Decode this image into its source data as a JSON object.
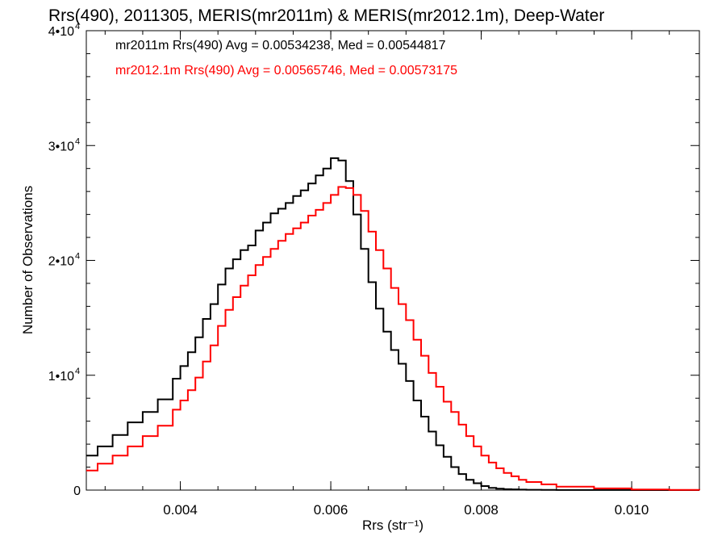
{
  "chart_data": {
    "type": "line",
    "title": "Rrs(490), 2011305, MERIS(mr2011m) & MERIS(mr2012.1m), Deep-Water",
    "xlabel": "Rrs (str⁻¹)",
    "ylabel": "Number of Observations",
    "xlim": [
      0.00275,
      0.0109
    ],
    "ylim": [
      0,
      40000
    ],
    "x_ticks": [
      {
        "value": 0.004,
        "label": "0.004"
      },
      {
        "value": 0.006,
        "label": "0.006"
      },
      {
        "value": 0.008,
        "label": "0.008"
      },
      {
        "value": 0.01,
        "label": "0.010"
      }
    ],
    "y_ticks": [
      {
        "value": 0,
        "label": "0",
        "exp": ""
      },
      {
        "value": 10000,
        "label": "1•10",
        "exp": "4"
      },
      {
        "value": 20000,
        "label": "2•10",
        "exp": "4"
      },
      {
        "value": 30000,
        "label": "3•10",
        "exp": "4"
      },
      {
        "value": 40000,
        "label": "4•10",
        "exp": "4"
      }
    ],
    "legend_position": "top-left",
    "grid": false,
    "series": [
      {
        "name": "mr2011m Rrs(490) Avg = 0.00534238, Med = 0.00544817",
        "color": "#000000",
        "x": [
          0.00275,
          0.0029,
          0.0031,
          0.0033,
          0.0035,
          0.0037,
          0.0039,
          0.004,
          0.0041,
          0.0042,
          0.0043,
          0.0044,
          0.0045,
          0.0046,
          0.0047,
          0.0048,
          0.0049,
          0.005,
          0.0051,
          0.0052,
          0.0053,
          0.0054,
          0.0055,
          0.0056,
          0.0057,
          0.0058,
          0.0059,
          0.006,
          0.0061,
          0.0062,
          0.0063,
          0.0064,
          0.0065,
          0.0066,
          0.0067,
          0.0068,
          0.0069,
          0.007,
          0.0071,
          0.0072,
          0.0073,
          0.0074,
          0.0075,
          0.0076,
          0.0077,
          0.0078,
          0.0079,
          0.008,
          0.0081,
          0.0082,
          0.0083,
          0.0084,
          0.0085,
          0.0086,
          0.0088,
          0.009,
          0.0095,
          0.01,
          0.0105,
          0.0109
        ],
        "y": [
          3000,
          3800,
          4800,
          5900,
          6800,
          7900,
          9700,
          10800,
          12000,
          13300,
          14900,
          16200,
          17900,
          19300,
          20100,
          20900,
          21300,
          22600,
          23300,
          24100,
          24500,
          25000,
          25600,
          26100,
          26700,
          27400,
          28000,
          28900,
          28700,
          26900,
          24000,
          21000,
          18100,
          15800,
          13800,
          12200,
          11000,
          9500,
          7800,
          6400,
          5100,
          3900,
          2900,
          2000,
          1400,
          900,
          600,
          350,
          200,
          120,
          80,
          60,
          40,
          30,
          20,
          10,
          5,
          0,
          0,
          0
        ]
      },
      {
        "name": "mr2012.1m Rrs(490) Avg = 0.00565746, Med = 0.00573175",
        "color": "#ff0000",
        "x": [
          0.00275,
          0.0029,
          0.0031,
          0.0033,
          0.0035,
          0.0037,
          0.0039,
          0.004,
          0.0041,
          0.0042,
          0.0043,
          0.0044,
          0.0045,
          0.0046,
          0.0047,
          0.0048,
          0.0049,
          0.005,
          0.0051,
          0.0052,
          0.0053,
          0.0054,
          0.0055,
          0.0056,
          0.0057,
          0.0058,
          0.0059,
          0.006,
          0.0061,
          0.0062,
          0.0063,
          0.0064,
          0.0065,
          0.0066,
          0.0067,
          0.0068,
          0.0069,
          0.007,
          0.0071,
          0.0072,
          0.0073,
          0.0074,
          0.0075,
          0.0076,
          0.0077,
          0.0078,
          0.0079,
          0.008,
          0.0081,
          0.0082,
          0.0083,
          0.0084,
          0.0085,
          0.0086,
          0.0088,
          0.009,
          0.0095,
          0.01,
          0.0105,
          0.0109
        ],
        "y": [
          1700,
          2300,
          3000,
          3800,
          4700,
          5600,
          7000,
          7800,
          8700,
          9800,
          11200,
          12600,
          14300,
          15700,
          16800,
          17800,
          18700,
          19600,
          20300,
          21000,
          21700,
          22300,
          22800,
          23300,
          23900,
          24400,
          25000,
          25700,
          26400,
          26300,
          25700,
          24300,
          22500,
          20900,
          19300,
          17600,
          16200,
          14800,
          13100,
          11700,
          10200,
          9000,
          7700,
          6800,
          5700,
          4700,
          3800,
          3000,
          2400,
          1900,
          1500,
          1200,
          900,
          700,
          500,
          300,
          150,
          50,
          20,
          0
        ]
      }
    ]
  }
}
